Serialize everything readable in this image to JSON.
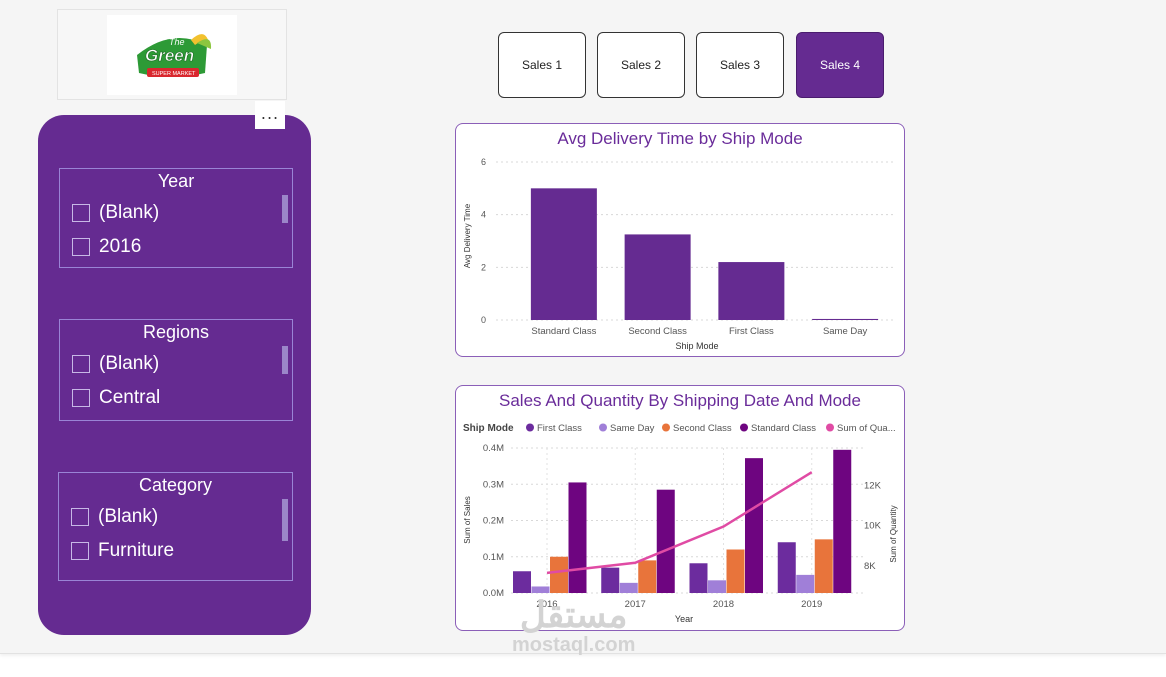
{
  "logo": {
    "line1": "The",
    "line2": "Green",
    "line3": "SUPER MARKET"
  },
  "more_options": "...",
  "slicers": [
    {
      "title": "Year",
      "options": [
        "(Blank)",
        "2016"
      ]
    },
    {
      "title": "Regions",
      "options": [
        "(Blank)",
        "Central"
      ]
    },
    {
      "title": "Category",
      "options": [
        "(Blank)",
        "Furniture"
      ]
    }
  ],
  "nav_buttons": [
    "Sales 1",
    "Sales 2",
    "Sales 3",
    "Sales 4"
  ],
  "active_nav": "Sales 4",
  "colors": {
    "purple": "#652b91",
    "first_class": "#6c2c9e",
    "same_day": "#a07fd8",
    "second_class": "#e8743b",
    "standard_class": "#6e0580",
    "sum_quantity": "#e04ba4"
  },
  "chart_data": [
    {
      "type": "bar",
      "title": "Avg Delivery Time by Ship Mode",
      "xlabel": "Ship Mode",
      "ylabel": "Avg Delivery Time",
      "categories": [
        "Standard Class",
        "Second Class",
        "First Class",
        "Same Day"
      ],
      "values": [
        5.0,
        3.25,
        2.2,
        0.04
      ],
      "ylim": [
        0,
        6
      ],
      "yticks": [
        0,
        2,
        4,
        6
      ],
      "grid": true
    },
    {
      "type": "bar",
      "title": "Sales And Quantity By Shipping Date And Mode",
      "legend_title": "Ship Mode",
      "legend_placement": "top",
      "xlabel": "Year",
      "ylabel": "Sum of Sales",
      "y2label": "Sum of Quantity",
      "categories": [
        "2016",
        "2017",
        "2018",
        "2019"
      ],
      "ylim": [
        0,
        400000
      ],
      "yticks": [
        "0.0M",
        "0.1M",
        "0.2M",
        "0.3M",
        "0.4M"
      ],
      "y2lim": [
        6600,
        13800
      ],
      "y2ticks": [
        "8K",
        "10K",
        "12K"
      ],
      "series": [
        {
          "name": "First Class",
          "values": [
            60000,
            70000,
            82000,
            140000
          ]
        },
        {
          "name": "Same Day",
          "values": [
            18000,
            28000,
            35000,
            50000
          ]
        },
        {
          "name": "Second Class",
          "values": [
            100000,
            90000,
            120000,
            148000
          ]
        },
        {
          "name": "Standard Class",
          "values": [
            305000,
            285000,
            372000,
            395000
          ]
        }
      ],
      "line_series": {
        "name": "Sum of Qua...",
        "values": [
          7600,
          8100,
          9900,
          12600
        ]
      }
    }
  ],
  "watermark": {
    "arabic": "مستقل",
    "latin": "mostaql.com"
  }
}
